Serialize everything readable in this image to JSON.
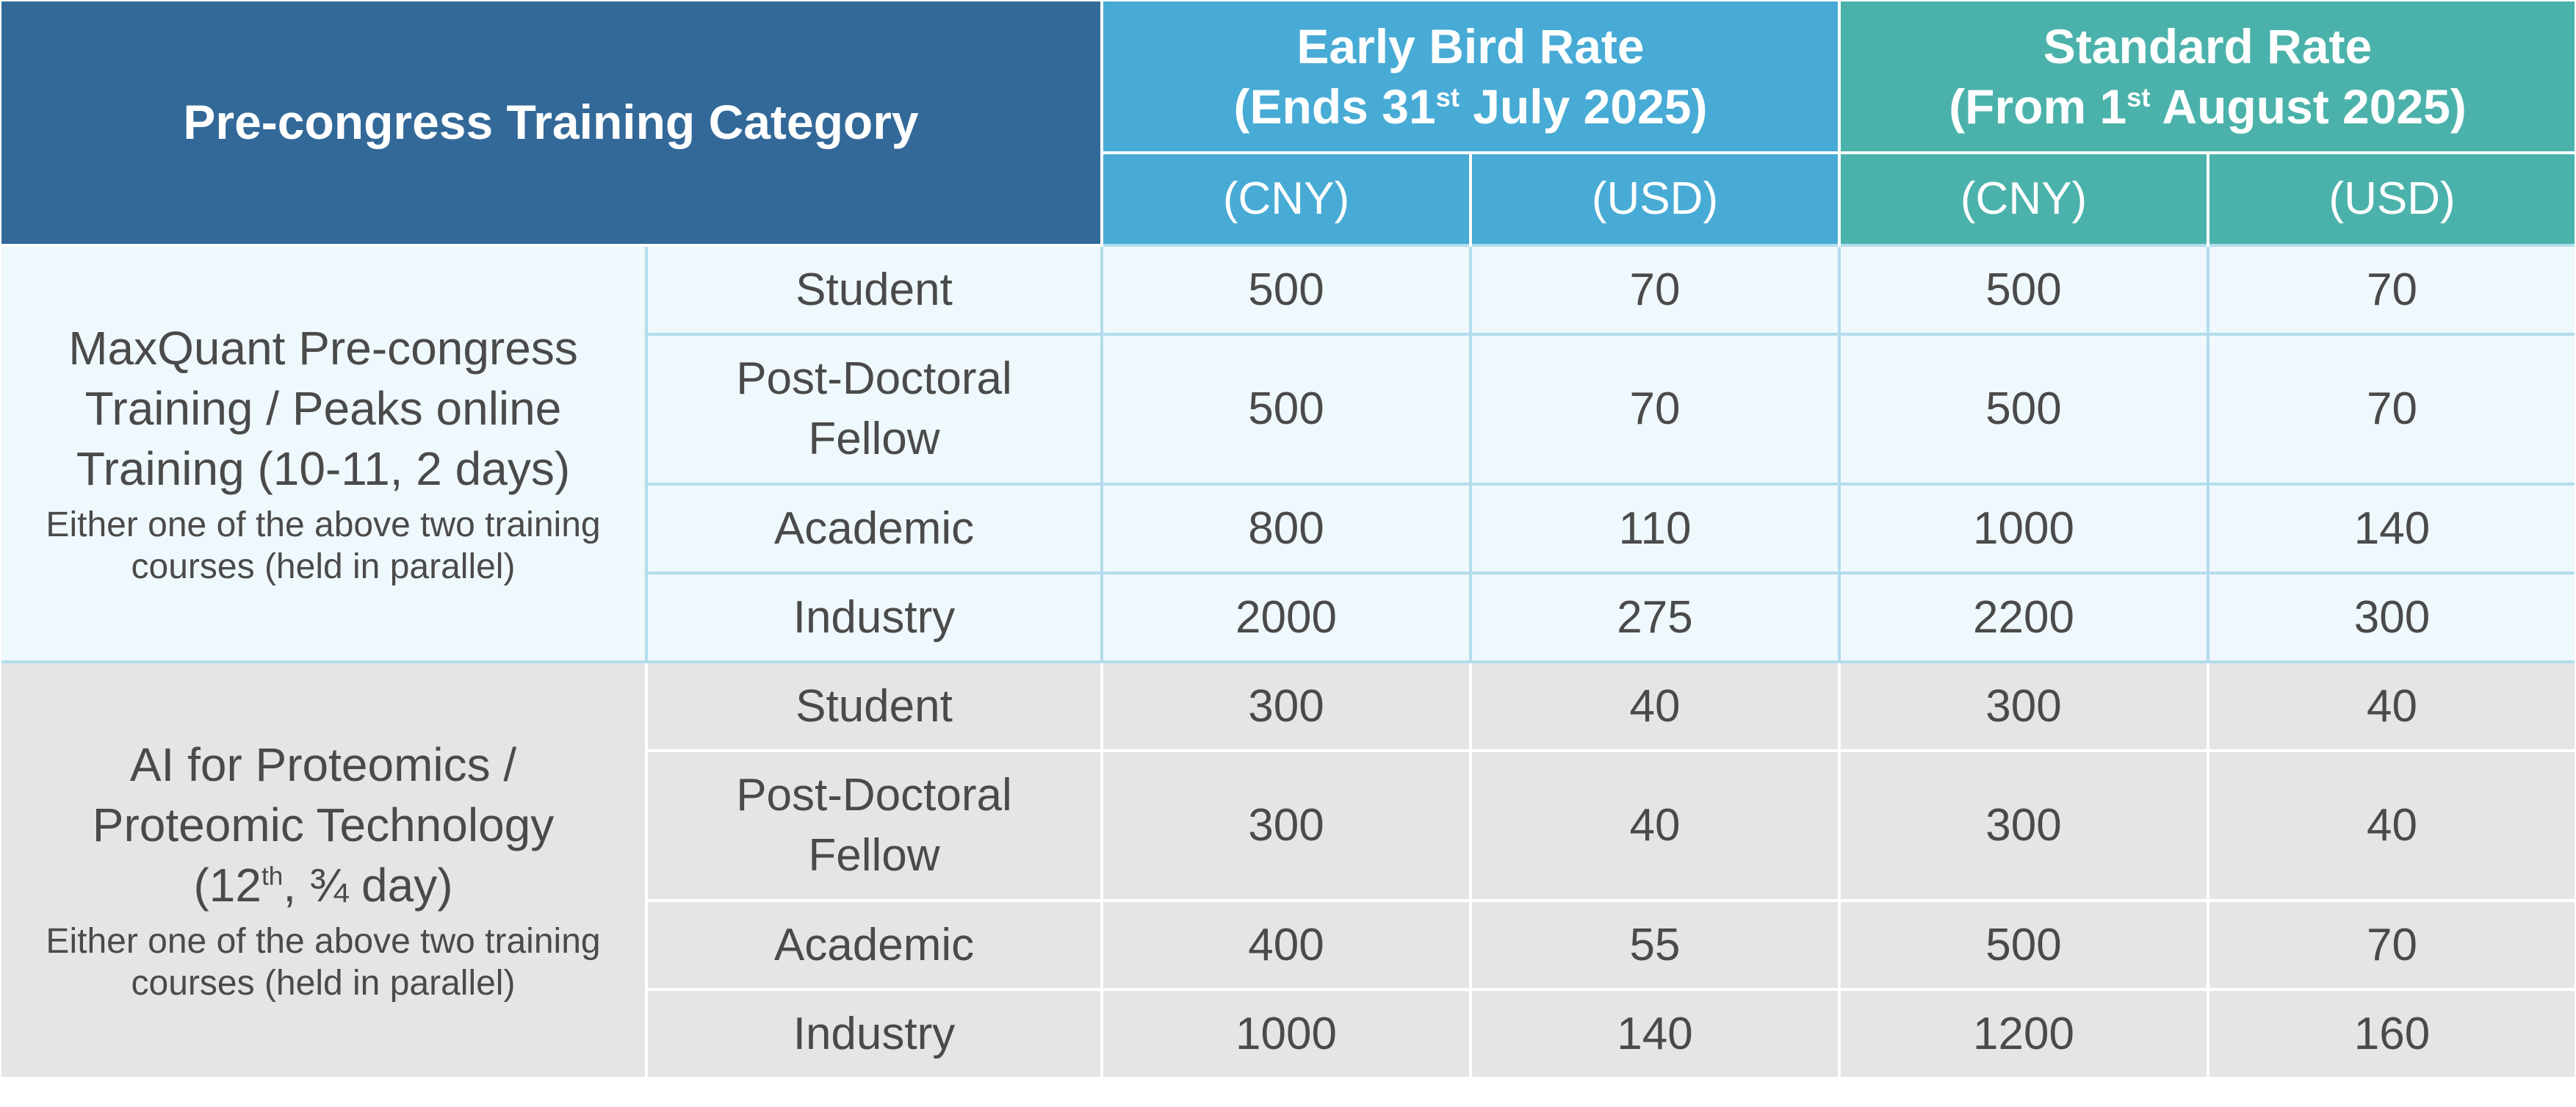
{
  "header": {
    "category": "Pre-congress Training Category",
    "early_line1": "Early Bird Rate",
    "early_line2_pre": "(Ends 31",
    "early_line2_sup": "st",
    "early_line2_post": " July 2025)",
    "std_line1": "Standard Rate",
    "std_line2_pre": "(From 1",
    "std_line2_sup": "st",
    "std_line2_post": " August 2025)",
    "cny": "(CNY)",
    "usd": "(USD)"
  },
  "groups": [
    {
      "title_lines": [
        "MaxQuant Pre-congress",
        "Training / Peaks online",
        "Training (10-11, 2 days)"
      ],
      "note_lines": [
        "Either one of the above two training",
        "courses (held in parallel)"
      ],
      "rows": [
        {
          "type": "Student",
          "early_cny": "500",
          "early_usd": "70",
          "std_cny": "500",
          "std_usd": "70"
        },
        {
          "type_lines": [
            "Post-Doctoral",
            "Fellow"
          ],
          "early_cny": "500",
          "early_usd": "70",
          "std_cny": "500",
          "std_usd": "70"
        },
        {
          "type": "Academic",
          "early_cny": "800",
          "early_usd": "110",
          "std_cny": "1000",
          "std_usd": "140"
        },
        {
          "type": "Industry",
          "early_cny": "2000",
          "early_usd": "275",
          "std_cny": "2200",
          "std_usd": "300"
        }
      ]
    },
    {
      "title_lines": [
        "AI for Proteomics /",
        "Proteomic Technology"
      ],
      "title_line3_pre": "(12",
      "title_line3_sup": "th",
      "title_line3_post": ", ¾ day)",
      "note_lines": [
        "Either one of the above two training",
        "courses (held in parallel)"
      ],
      "rows": [
        {
          "type": "Student",
          "early_cny": "300",
          "early_usd": "40",
          "std_cny": "300",
          "std_usd": "40"
        },
        {
          "type_lines": [
            "Post-Doctoral",
            "Fellow"
          ],
          "early_cny": "300",
          "early_usd": "40",
          "std_cny": "300",
          "std_usd": "40"
        },
        {
          "type": "Academic",
          "early_cny": "400",
          "early_usd": "55",
          "std_cny": "500",
          "std_usd": "70"
        },
        {
          "type": "Industry",
          "early_cny": "1000",
          "early_usd": "140",
          "std_cny": "1200",
          "std_usd": "160"
        }
      ]
    }
  ],
  "colors": {
    "header_category": "#336999",
    "header_early": "#47abd5",
    "header_standard": "#4bb2ab",
    "group1_bg": "#eff8fc",
    "group2_bg": "#e5e5e7",
    "text": "#4a4a4a"
  }
}
